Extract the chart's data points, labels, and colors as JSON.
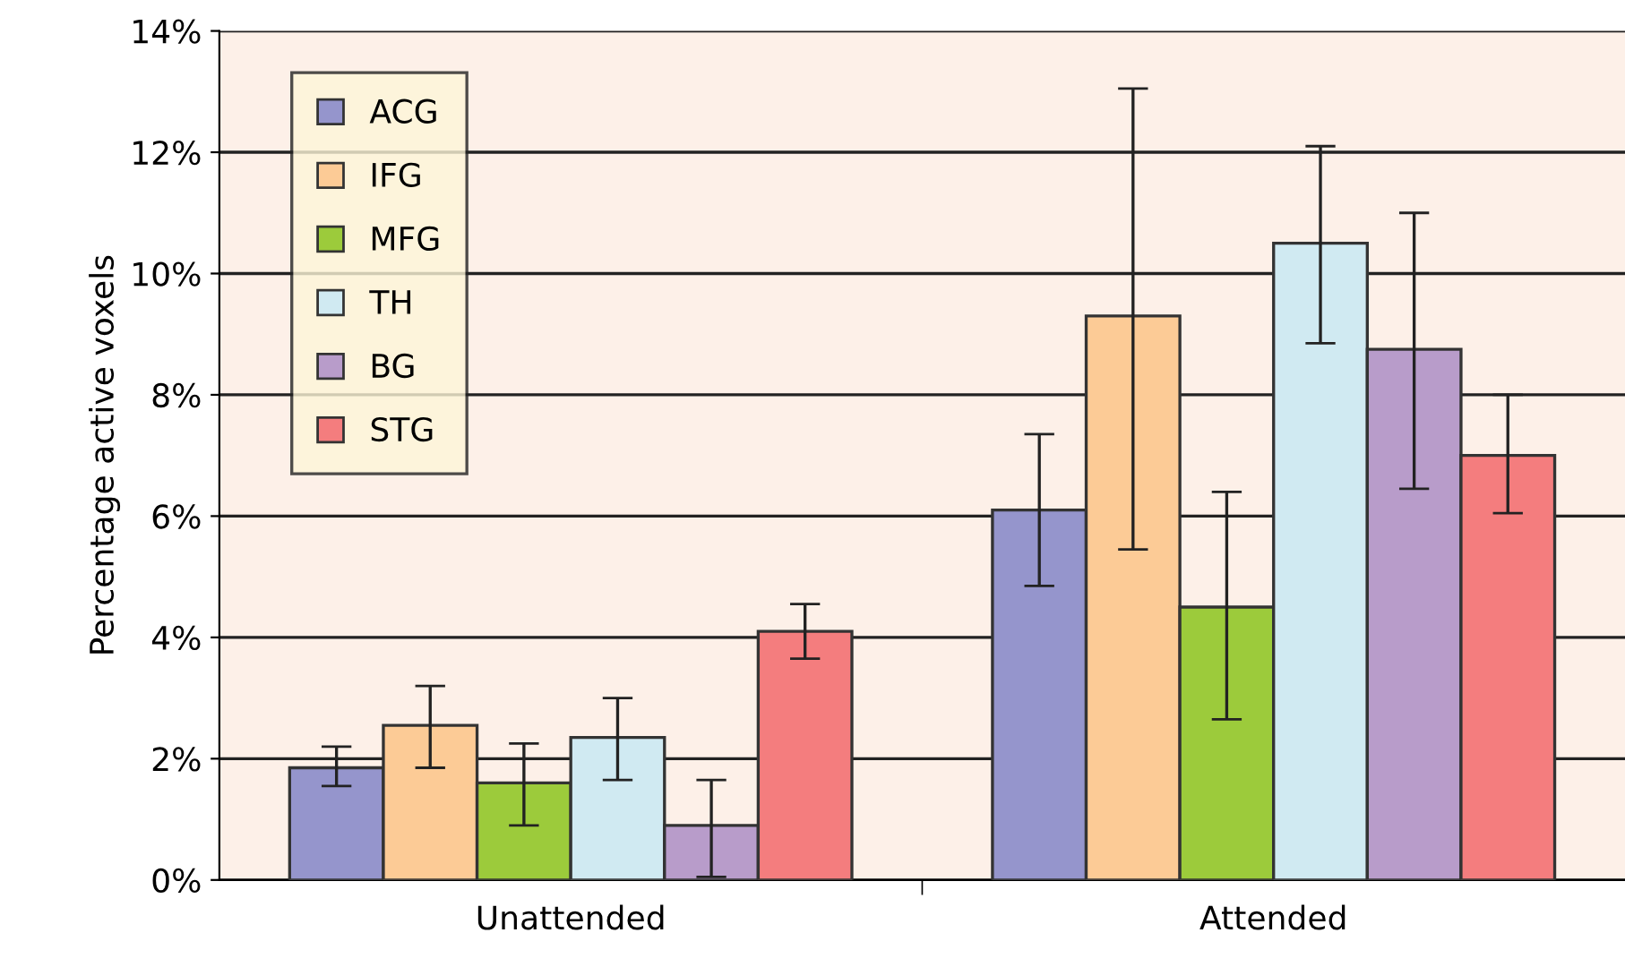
{
  "chart_data": {
    "type": "bar",
    "ylabel": "Percentage active voxels",
    "categories": [
      "Unattended",
      "Attended"
    ],
    "series": [
      {
        "name": "ACG",
        "color": "#9595cc",
        "values": [
          1.85,
          6.1
        ],
        "errors": [
          [
            1.55,
            2.2
          ],
          [
            4.85,
            7.35
          ]
        ]
      },
      {
        "name": "IFG",
        "color": "#fccb96",
        "values": [
          2.55,
          9.3
        ],
        "errors": [
          [
            1.85,
            3.2
          ],
          [
            5.45,
            13.05
          ]
        ]
      },
      {
        "name": "MFG",
        "color": "#9ccb3b",
        "values": [
          1.6,
          4.5
        ],
        "errors": [
          [
            0.9,
            2.25
          ],
          [
            2.65,
            6.4
          ]
        ]
      },
      {
        "name": "TH",
        "color": "#d0eaf2",
        "values": [
          2.35,
          10.5
        ],
        "errors": [
          [
            1.65,
            3.0
          ],
          [
            8.85,
            12.1
          ]
        ]
      },
      {
        "name": "BG",
        "color": "#b89cca",
        "values": [
          0.9,
          8.75
        ],
        "errors": [
          [
            0.05,
            1.65
          ],
          [
            6.45,
            11.0
          ]
        ]
      },
      {
        "name": "STG",
        "color": "#f47d7e",
        "values": [
          4.1,
          7.0
        ],
        "errors": [
          [
            3.65,
            4.55
          ],
          [
            6.05,
            8.0
          ]
        ]
      }
    ],
    "ylim": [
      0,
      14
    ],
    "yticks": [
      {
        "value": 0,
        "label": "0%"
      },
      {
        "value": 2,
        "label": "2%"
      },
      {
        "value": 4,
        "label": "4%"
      },
      {
        "value": 6,
        "label": "6%"
      },
      {
        "value": 8,
        "label": "8%"
      },
      {
        "value": 10,
        "label": "10%"
      },
      {
        "value": 12,
        "label": "12%"
      },
      {
        "value": 14,
        "label": "14%"
      }
    ],
    "grid": "y",
    "legend": "top left"
  }
}
